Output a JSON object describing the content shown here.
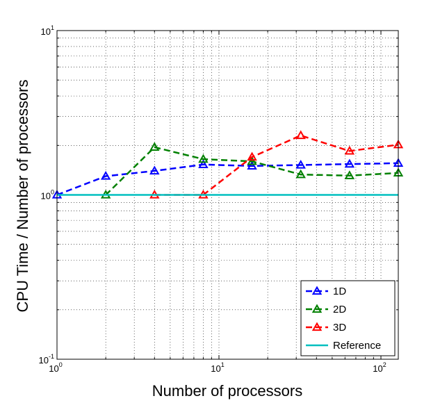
{
  "chart_data": {
    "type": "line",
    "xlabel": "Number of processors",
    "ylabel": "CPU Time / Number of processors",
    "x_scale": "log",
    "y_scale": "log",
    "xlim": [
      1,
      128
    ],
    "ylim": [
      0.1,
      10
    ],
    "x_ticks": [
      {
        "value": 1,
        "base": "10",
        "exp": "0"
      },
      {
        "value": 10,
        "base": "10",
        "exp": "1"
      },
      {
        "value": 100,
        "base": "10",
        "exp": "2"
      }
    ],
    "y_ticks": [
      {
        "value": 0.1,
        "base": "10",
        "exp": "-1"
      },
      {
        "value": 1,
        "base": "10",
        "exp": "0"
      },
      {
        "value": 10,
        "base": "10",
        "exp": "1"
      }
    ],
    "grid": true,
    "legend_position": "bottom-right",
    "series": [
      {
        "name": "1D",
        "color": "#0000ff",
        "dash": "long-dash",
        "marker": "triangle",
        "x": [
          1,
          2,
          4,
          8,
          16,
          32,
          64,
          128
        ],
        "y": [
          1.0,
          1.3,
          1.4,
          1.53,
          1.5,
          1.52,
          1.54,
          1.56
        ]
      },
      {
        "name": "2D",
        "color": "#008000",
        "dash": "long-dash",
        "marker": "triangle",
        "x": [
          2,
          4,
          8,
          16,
          32,
          64,
          128
        ],
        "y": [
          1.0,
          1.95,
          1.65,
          1.6,
          1.33,
          1.31,
          1.36
        ]
      },
      {
        "name": "3D",
        "color": "#ff0000",
        "dash": "long-dash",
        "marker": "triangle",
        "x": [
          4,
          8,
          16,
          32,
          64,
          128
        ],
        "y": [
          1.0,
          1.0,
          1.7,
          2.3,
          1.85,
          2.02
        ]
      },
      {
        "name": "Reference",
        "color": "#00bfbf",
        "dash": "solid",
        "marker": "none",
        "x": [
          1,
          128
        ],
        "y": [
          1.0,
          1.0
        ]
      }
    ]
  }
}
